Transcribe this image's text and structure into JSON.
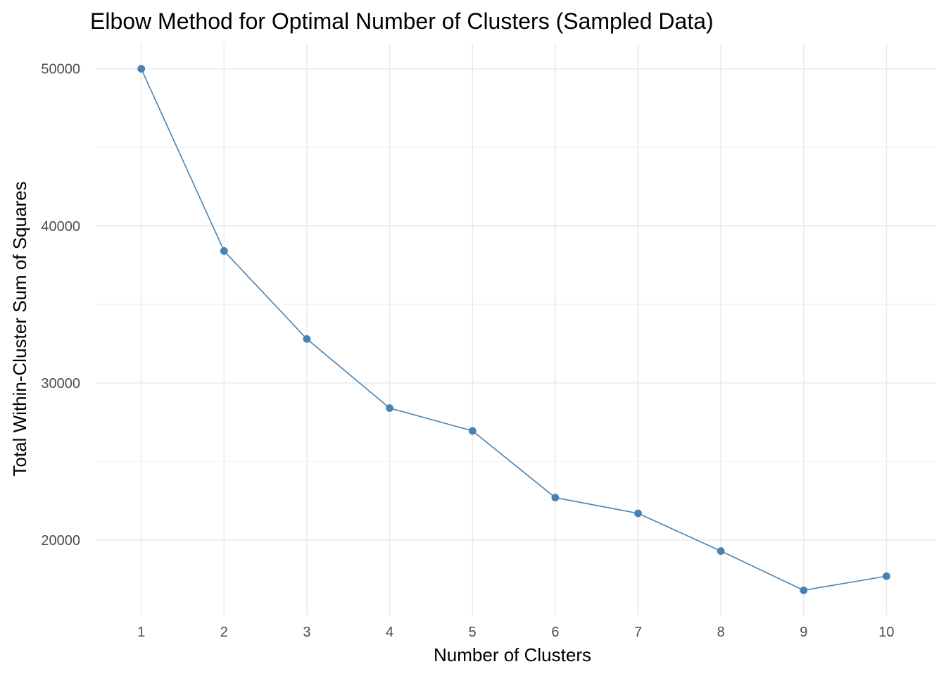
{
  "chart_data": {
    "type": "line",
    "title": "Elbow Method for Optimal Number of Clusters (Sampled Data)",
    "xlabel": "Number of Clusters",
    "ylabel": "Total Within-Cluster Sum of Squares",
    "x": [
      1,
      2,
      3,
      4,
      5,
      6,
      7,
      8,
      9,
      10
    ],
    "series": [
      {
        "values": [
          50000,
          38400,
          32800,
          28400,
          26950,
          22700,
          21700,
          19300,
          16800,
          17700
        ]
      }
    ],
    "x_ticks": [
      "1",
      "2",
      "3",
      "4",
      "5",
      "6",
      "7",
      "8",
      "9",
      "10"
    ],
    "y_ticks": [
      "20000",
      "30000",
      "40000",
      "50000"
    ],
    "xlim": [
      0.45,
      10.6
    ],
    "ylim": [
      15200,
      51600
    ],
    "grid": true,
    "line_color": "#4682b4",
    "point_color": "#4682b4"
  }
}
